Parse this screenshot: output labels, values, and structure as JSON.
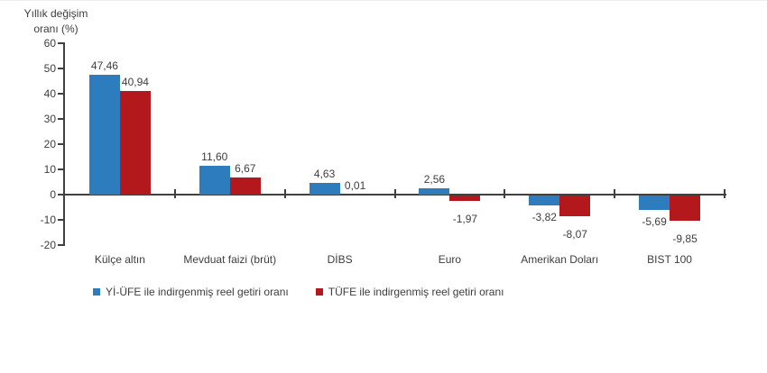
{
  "chart_data": {
    "type": "bar",
    "title_lines": [
      "Yıllık değişim",
      "oranı (%)"
    ],
    "categories": [
      "Külçe altın",
      "Mevduat faizi (brüt)",
      "DİBS",
      "Euro",
      "Amerikan Doları",
      "BIST 100"
    ],
    "series": [
      {
        "name": "Yİ-ÜFE ile indirgenmiş reel getiri oranı",
        "color": "#2d7dbe",
        "values": [
          47.46,
          11.6,
          4.63,
          2.56,
          -3.82,
          -5.69
        ],
        "labels": [
          "47,46",
          "11,60",
          "4,63",
          "2,56",
          "-3,82",
          "-5,69"
        ]
      },
      {
        "name": "TÜFE ile indirgenmiş reel getiri oranı",
        "color": "#b2181c",
        "values": [
          40.94,
          6.67,
          0.01,
          -1.97,
          -8.07,
          -9.85
        ],
        "labels": [
          "40,94",
          "6,67",
          "0,01",
          "-1,97",
          "-8,07",
          "-9,85"
        ]
      }
    ],
    "yticks": [
      60,
      50,
      40,
      30,
      20,
      10,
      0,
      -10,
      -20
    ],
    "ylim": [
      -20,
      60
    ],
    "grid": false,
    "legend_position": "bottom",
    "colors": {
      "axis": "#404040",
      "text": "#3d3d3d"
    }
  }
}
